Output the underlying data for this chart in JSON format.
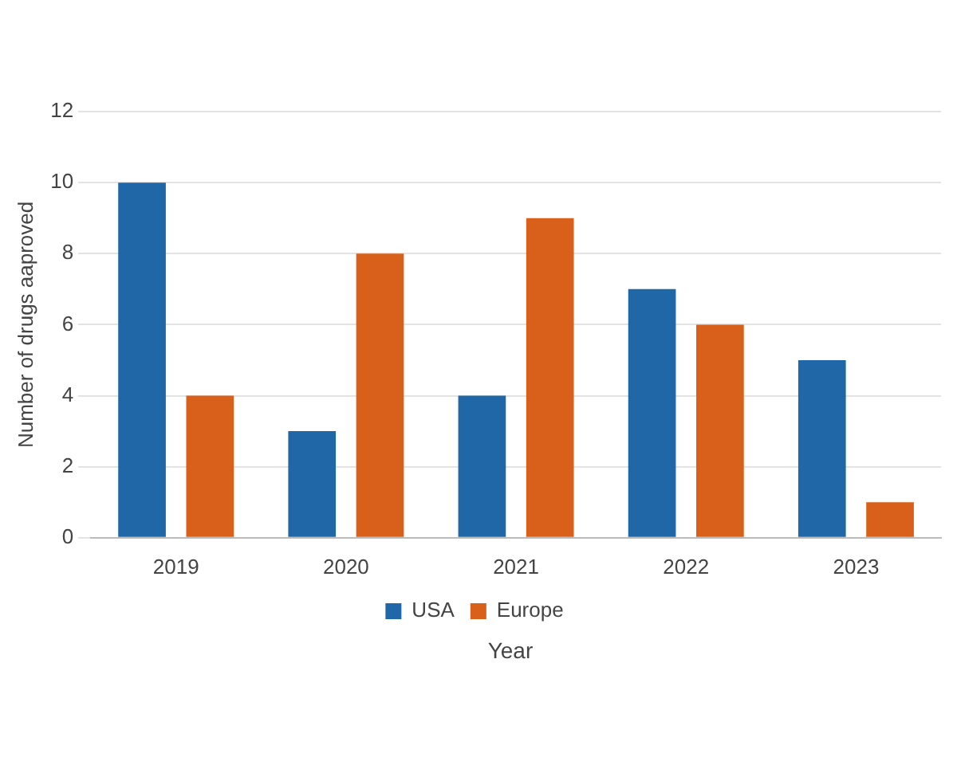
{
  "chart_data": {
    "type": "bar",
    "xlabel": "Year",
    "ylabel": "Number of drugs aaproved",
    "categories": [
      "2019",
      "2020",
      "2021",
      "2022",
      "2023"
    ],
    "series": [
      {
        "name": "USA",
        "color": "#1f67a6",
        "values": [
          10,
          3,
          4,
          7,
          5
        ]
      },
      {
        "name": "Europe",
        "color": "#d9601a",
        "values": [
          4,
          8,
          9,
          6,
          1
        ]
      }
    ],
    "ylim": [
      0,
      12
    ],
    "yticks": [
      0,
      2,
      4,
      6,
      8,
      10,
      12
    ],
    "grid": "y",
    "legend": "bottom"
  }
}
